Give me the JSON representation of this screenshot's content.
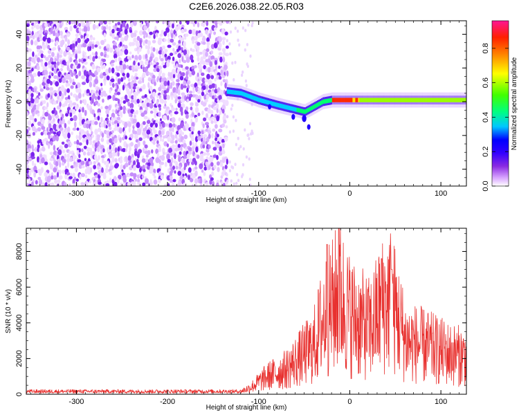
{
  "title": "C2E6.2026.038.22.05.R03",
  "chart_data": [
    {
      "type": "heatmap",
      "xlabel": "Height of straight line (km)",
      "ylabel": "Frequency (Hz)",
      "xlim": [
        -355,
        128
      ],
      "ylim": [
        -50,
        48
      ],
      "xticks": [
        -300,
        -200,
        -100,
        0,
        100
      ],
      "yticks": [
        -40,
        -20,
        0,
        20,
        40
      ],
      "colorbar": {
        "label": "Normalized spectral amplitude",
        "ticks": [
          0.0,
          0.2,
          0.4,
          0.6,
          0.8
        ],
        "range": [
          0,
          0.96
        ],
        "colors": [
          "#ffffff",
          "#d9a6ff",
          "#8a2be2",
          "#3300ff",
          "#0000ff",
          "#00c8ff",
          "#00ff80",
          "#40ff00",
          "#ffff00",
          "#ff8000",
          "#ff2000",
          "#ff1493"
        ]
      },
      "noise_region": {
        "x_range": [
          -355,
          -135
        ],
        "freq_range": [
          -50,
          48
        ]
      },
      "signal_ridge": [
        {
          "x": -135,
          "freq": 6
        },
        {
          "x": -120,
          "freq": 5
        },
        {
          "x": -100,
          "freq": 1
        },
        {
          "x": -80,
          "freq": -2
        },
        {
          "x": -65,
          "freq": -4
        },
        {
          "x": -50,
          "freq": -6
        },
        {
          "x": -40,
          "freq": -3
        },
        {
          "x": -30,
          "freq": 0
        },
        {
          "x": -20,
          "freq": 1
        },
        {
          "x": 0,
          "freq": 1
        },
        {
          "x": 50,
          "freq": 1
        },
        {
          "x": 100,
          "freq": 1
        },
        {
          "x": 128,
          "freq": 1
        }
      ]
    },
    {
      "type": "line",
      "xlabel": "Height of straight line (km)",
      "ylabel": "SNR (10 * v/v)",
      "xlim": [
        -355,
        128
      ],
      "ylim": [
        0,
        9300
      ],
      "xticks": [
        -300,
        -200,
        -100,
        0,
        100
      ],
      "yticks": [
        0,
        2000,
        4000,
        6000,
        8000
      ],
      "color": "#e8312f",
      "envelope": [
        {
          "x": -355,
          "y": 200
        },
        {
          "x": -120,
          "y": 200
        },
        {
          "x": -110,
          "y": 450
        },
        {
          "x": -90,
          "y": 1300
        },
        {
          "x": -70,
          "y": 1800
        },
        {
          "x": -55,
          "y": 2600
        },
        {
          "x": -40,
          "y": 3400
        },
        {
          "x": -28,
          "y": 5600
        },
        {
          "x": -18,
          "y": 6400
        },
        {
          "x": -12,
          "y": 7200
        },
        {
          "x": 0,
          "y": 5700
        },
        {
          "x": 10,
          "y": 5200
        },
        {
          "x": 22,
          "y": 4700
        },
        {
          "x": 35,
          "y": 6300
        },
        {
          "x": 45,
          "y": 6900
        },
        {
          "x": 52,
          "y": 5600
        },
        {
          "x": 62,
          "y": 3800
        },
        {
          "x": 75,
          "y": 3600
        },
        {
          "x": 90,
          "y": 3300
        },
        {
          "x": 110,
          "y": 2900
        },
        {
          "x": 128,
          "y": 2700
        }
      ],
      "peaks": [
        {
          "x": -12,
          "y": 9300
        },
        {
          "x": -25,
          "y": 8400
        },
        {
          "x": 35,
          "y": 7600
        },
        {
          "x": 46,
          "y": 7000
        }
      ]
    }
  ]
}
